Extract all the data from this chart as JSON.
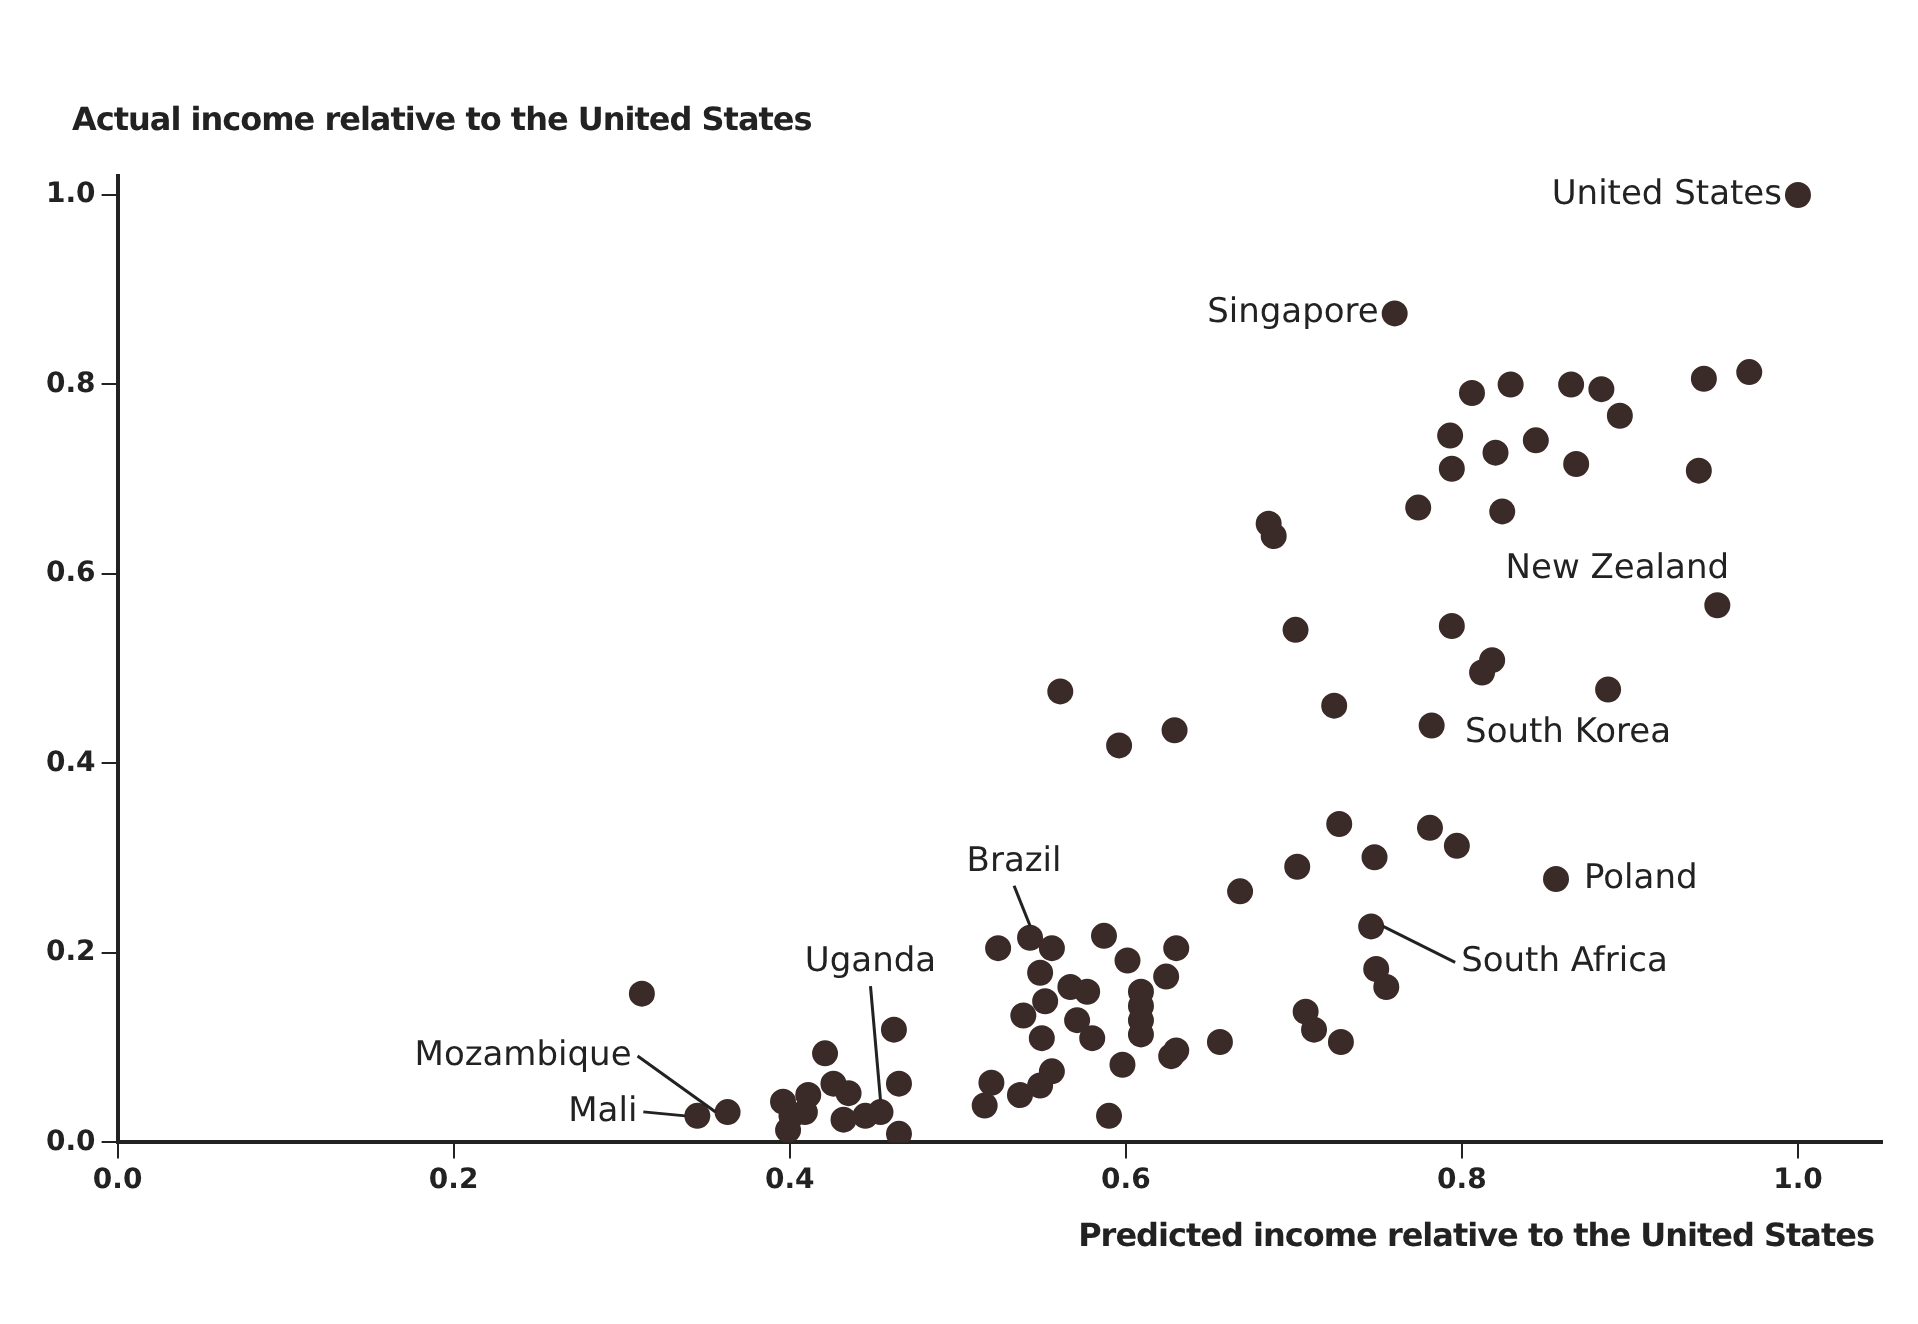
{
  "chart_data": {
    "type": "scatter",
    "xlabel": "Predicted income relative to the United States",
    "ylabel": "Actual income relative to the United States",
    "x": [
      1.0,
      0.76,
      0.952,
      0.887,
      0.856,
      0.746,
      0.543,
      0.454,
      0.363,
      0.345,
      0.806,
      0.829,
      0.865,
      0.883,
      0.894,
      0.944,
      0.971,
      0.793,
      0.794,
      0.82,
      0.844,
      0.868,
      0.941,
      0.774,
      0.824,
      0.685,
      0.688,
      0.701,
      0.794,
      0.818,
      0.812,
      0.724,
      0.782,
      0.561,
      0.596,
      0.629,
      0.727,
      0.702,
      0.668,
      0.524,
      0.556,
      0.587,
      0.63,
      0.549,
      0.601,
      0.624,
      0.567,
      0.577,
      0.609,
      0.609,
      0.609,
      0.609,
      0.552,
      0.539,
      0.571,
      0.58,
      0.55,
      0.63,
      0.627,
      0.656,
      0.598,
      0.556,
      0.549,
      0.537,
      0.52,
      0.516,
      0.59,
      0.707,
      0.712,
      0.728,
      0.781,
      0.797,
      0.748,
      0.749,
      0.755,
      0.312,
      0.462,
      0.465,
      0.465,
      0.421,
      0.426,
      0.435,
      0.411,
      0.396,
      0.401,
      0.399,
      0.409,
      0.432,
      0.445
    ],
    "values": [
      1.0,
      0.875,
      0.567,
      0.478,
      0.278,
      0.228,
      0.216,
      0.032,
      0.032,
      0.028,
      0.791,
      0.8,
      0.8,
      0.795,
      0.767,
      0.806,
      0.813,
      0.746,
      0.711,
      0.728,
      0.741,
      0.716,
      0.709,
      0.67,
      0.666,
      0.653,
      0.64,
      0.541,
      0.545,
      0.509,
      0.496,
      0.461,
      0.44,
      0.476,
      0.419,
      0.435,
      0.336,
      0.291,
      0.265,
      0.205,
      0.205,
      0.218,
      0.205,
      0.179,
      0.192,
      0.175,
      0.164,
      0.159,
      0.159,
      0.144,
      0.129,
      0.114,
      0.149,
      0.134,
      0.129,
      0.11,
      0.11,
      0.097,
      0.091,
      0.106,
      0.082,
      0.075,
      0.06,
      0.05,
      0.063,
      0.039,
      0.028,
      0.138,
      0.119,
      0.106,
      0.332,
      0.313,
      0.301,
      0.183,
      0.164,
      0.157,
      0.119,
      0.062,
      0.009,
      0.094,
      0.062,
      0.052,
      0.05,
      0.043,
      0.028,
      0.013,
      0.032,
      0.024,
      0.028
    ],
    "color": "#3b2b28",
    "marker": "circle",
    "grid": false,
    "legend": false,
    "xlim": [
      0,
      1.05
    ],
    "ylim": [
      0,
      1.02
    ],
    "xticks": [
      {
        "value": 0,
        "label": "0.0"
      },
      {
        "value": 0.2,
        "label": "0.2"
      },
      {
        "value": 0.4,
        "label": "0.4"
      },
      {
        "value": 0.6,
        "label": "0.6"
      },
      {
        "value": 0.8,
        "label": "0.8"
      },
      {
        "value": 1,
        "label": "1.0"
      }
    ],
    "yticks": [
      {
        "value": 0,
        "label": "0.0"
      },
      {
        "value": 0.2,
        "label": "0.2"
      },
      {
        "value": 0.4,
        "label": "0.4"
      },
      {
        "value": 0.6,
        "label": "0.6"
      },
      {
        "value": 0.8,
        "label": "0.8"
      },
      {
        "value": 1,
        "label": "1.0"
      }
    ],
    "annotations": [
      {
        "text": "United States",
        "x": 1.0,
        "y": 1.0
      },
      {
        "text": "Singapore",
        "x": 0.76,
        "y": 0.875
      },
      {
        "text": "New Zealand",
        "x": 0.952,
        "y": 0.567
      },
      {
        "text": "South Korea",
        "x": 0.887,
        "y": 0.478
      },
      {
        "text": "Poland",
        "x": 0.856,
        "y": 0.278
      },
      {
        "text": "South Africa",
        "x": 0.746,
        "y": 0.228
      },
      {
        "text": "Brazil",
        "x": 0.543,
        "y": 0.216
      },
      {
        "text": "Uganda",
        "x": 0.454,
        "y": 0.032
      },
      {
        "text": "Mozambique",
        "x": 0.363,
        "y": 0.032
      },
      {
        "text": "Mali",
        "x": 0.345,
        "y": 0.028
      }
    ]
  }
}
